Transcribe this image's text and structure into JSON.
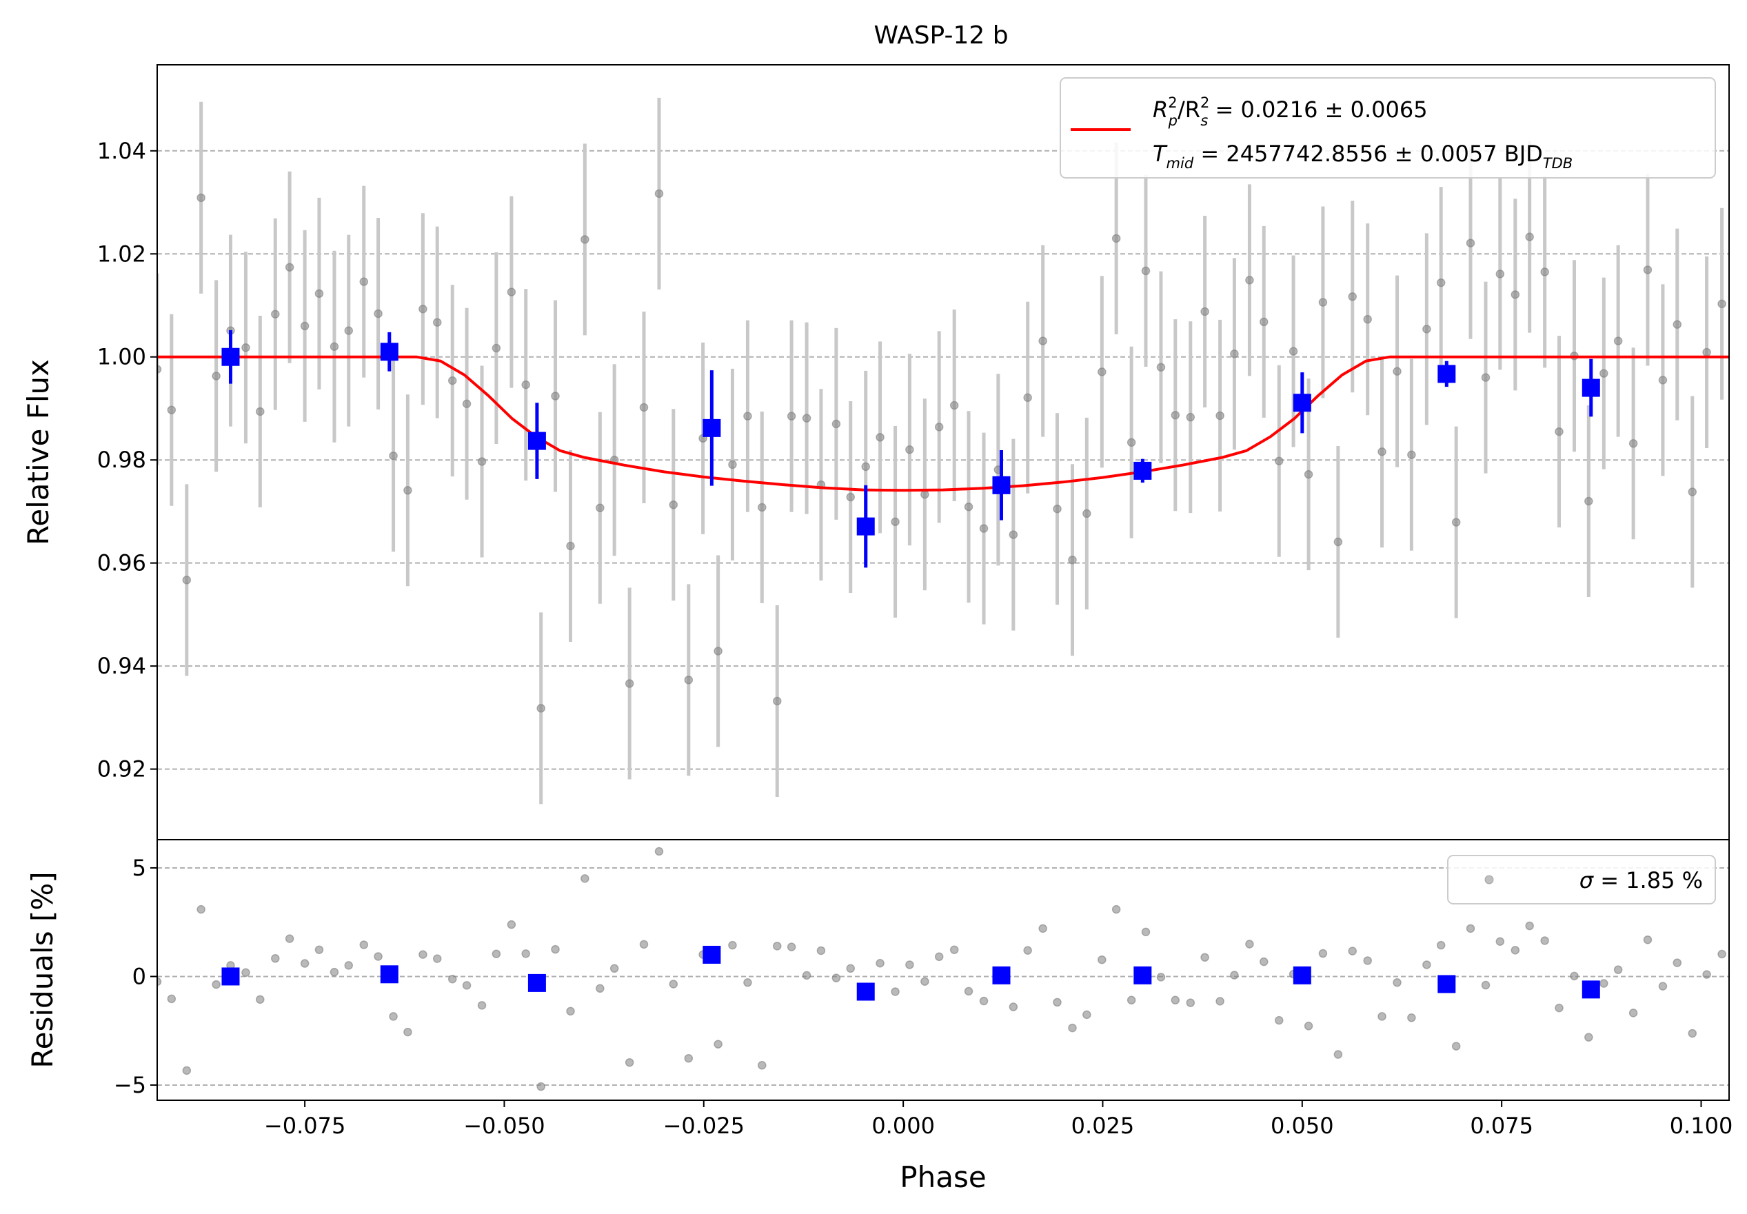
{
  "chart_data": [
    {
      "type": "scatter",
      "panel": "transit",
      "title": "WASP-12 b",
      "xlabel": "",
      "ylabel": "Relative Flux",
      "xlim": [
        -0.0935,
        0.1035
      ],
      "ylim": [
        0.9063,
        1.0567
      ],
      "yticks": [
        0.92,
        0.94,
        0.96,
        0.98,
        1.0,
        1.02,
        1.04
      ],
      "ytick_labels": [
        "0.92",
        "0.94",
        "0.96",
        "0.98",
        "1.00",
        "1.02",
        "1.04"
      ],
      "grid": "horizontal dashed",
      "legend_position": "upper right",
      "legend": {
        "line1_prefix": "R",
        "line1_sup1": "2",
        "line1_sub1": "p",
        "line1_mid": "/R",
        "line1_sup2": "2",
        "line1_sub2": "s",
        "line1_suffix": " = 0.0216 ± 0.0065",
        "line2_prefix": "T",
        "line2_sub": "mid",
        "line2_suffix": " = 2457742.8556 ± 0.0057 BJD",
        "line2_sub2": "TDB"
      },
      "series": [
        {
          "name": "raw",
          "color": "#808080",
          "marker": "circle",
          "error": 0.0186,
          "x": [
            -0.0935,
            -0.0917,
            -0.0898,
            -0.088,
            -0.0861,
            -0.0843,
            -0.0824,
            -0.0806,
            -0.0787,
            -0.0769,
            -0.075,
            -0.0732,
            -0.0713,
            -0.0695,
            -0.0676,
            -0.0658,
            -0.0639,
            -0.0621,
            -0.0602,
            -0.0584,
            -0.0565,
            -0.0547,
            -0.0528,
            -0.051,
            -0.0491,
            -0.0473,
            -0.0454,
            -0.0436,
            -0.0417,
            -0.0399,
            -0.038,
            -0.0362,
            -0.0343,
            -0.0325,
            -0.0306,
            -0.0288,
            -0.0269,
            -0.0251,
            -0.0232,
            -0.0214,
            -0.0195,
            -0.0177,
            -0.0158,
            -0.014,
            -0.0121,
            -0.0103,
            -0.0084,
            -0.0066,
            -0.0047,
            -0.0029,
            -0.001,
            0.0008,
            0.0027,
            0.0045,
            0.0064,
            0.0082,
            0.0101,
            0.0119,
            0.0138,
            0.0156,
            0.0175,
            0.0193,
            0.0212,
            0.023,
            0.0249,
            0.0267,
            0.0286,
            0.0304,
            0.0323,
            0.0341,
            0.036,
            0.0378,
            0.0397,
            0.0415,
            0.0434,
            0.0452,
            0.0471,
            0.0489,
            0.0508,
            0.0526,
            0.0545,
            0.0563,
            0.0582,
            0.06,
            0.0619,
            0.0637,
            0.0656,
            0.0674,
            0.0693,
            0.0711,
            0.073,
            0.0748,
            0.0767,
            0.0785,
            0.0804,
            0.0822,
            0.0841,
            0.0859,
            0.0878,
            0.0896,
            0.0915,
            0.0933,
            0.0952,
            0.097,
            0.0989,
            0.1007,
            0.1026
          ],
          "y": [
            0.9976,
            0.9897,
            0.9567,
            1.0309,
            0.9963,
            1.0051,
            1.0018,
            0.9894,
            1.0083,
            1.0174,
            1.006,
            1.0123,
            1.002,
            1.0051,
            1.0146,
            1.0084,
            0.9808,
            0.9741,
            1.0093,
            1.0067,
            0.9954,
            0.9909,
            0.9797,
            1.0017,
            1.0126,
            0.9946,
            0.9318,
            0.9924,
            0.9633,
            1.0228,
            0.9707,
            0.98,
            0.9366,
            0.9902,
            1.0317,
            0.9713,
            0.9373,
            0.9842,
            0.9429,
            0.9791,
            0.9885,
            0.9708,
            0.9332,
            0.9885,
            0.9881,
            0.9752,
            0.987,
            0.9728,
            0.9787,
            0.9844,
            0.968,
            0.982,
            0.9733,
            0.9864,
            0.9906,
            0.9709,
            0.9667,
            0.9781,
            0.9655,
            0.9921,
            1.0031,
            0.9705,
            0.9606,
            0.9696,
            0.9971,
            1.023,
            0.9834,
            1.0167,
            0.998,
            0.9887,
            0.9883,
            1.0088,
            0.9886,
            1.0006,
            1.0149,
            1.0068,
            0.9798,
            1.0011,
            0.9772,
            1.0106,
            0.9641,
            1.0117,
            1.0073,
            0.9816,
            0.9972,
            0.981,
            1.0054,
            1.0144,
            0.9679,
            1.0221,
            0.996,
            1.0161,
            1.0121,
            1.0233,
            1.0165,
            0.9855,
            1.0002,
            0.972,
            0.9968,
            1.0031,
            0.9832,
            1.0169,
            0.9955,
            1.0063,
            0.9738,
            1.0009,
            1.0103
          ]
        },
        {
          "name": "binned",
          "color": "#0000ff",
          "marker": "square",
          "x": [
            -0.0843,
            -0.0644,
            -0.0459,
            -0.024,
            -0.0047,
            0.0123,
            0.03,
            0.05,
            0.0681,
            0.0862
          ],
          "y": [
            1.0,
            1.001,
            0.9837,
            0.9862,
            0.9671,
            0.9751,
            0.9779,
            0.9911,
            0.9967,
            0.994
          ],
          "error": [
            0.0052,
            0.0038,
            0.0074,
            0.0112,
            0.008,
            0.0068,
            0.0023,
            0.0059,
            0.0025,
            0.0056
          ]
        },
        {
          "name": "model",
          "color": "#ff0000",
          "type": "line",
          "x": [
            -0.0935,
            -0.061,
            -0.058,
            -0.055,
            -0.052,
            -0.049,
            -0.046,
            -0.043,
            -0.04,
            -0.035,
            -0.03,
            -0.025,
            -0.02,
            -0.015,
            -0.01,
            -0.005,
            0.0,
            0.005,
            0.01,
            0.015,
            0.02,
            0.025,
            0.03,
            0.035,
            0.04,
            0.043,
            0.046,
            0.049,
            0.052,
            0.055,
            0.058,
            0.061,
            0.1035
          ],
          "y": [
            1.0,
            1.0,
            0.9992,
            0.9965,
            0.9925,
            0.988,
            0.9845,
            0.9818,
            0.9805,
            0.979,
            0.9777,
            0.9767,
            0.9759,
            0.9752,
            0.9746,
            0.9742,
            0.9741,
            0.9742,
            0.9745,
            0.975,
            0.9757,
            0.9766,
            0.9777,
            0.979,
            0.9805,
            0.9818,
            0.9845,
            0.988,
            0.9925,
            0.9965,
            0.9992,
            1.0,
            1.0
          ]
        }
      ]
    },
    {
      "type": "scatter",
      "panel": "residuals",
      "xlabel": "Phase",
      "ylabel": "Residuals [%]",
      "xlim": [
        -0.0935,
        0.1035
      ],
      "ylim": [
        -5.7,
        6.3
      ],
      "yticks": [
        -5,
        0,
        5
      ],
      "ytick_labels": [
        "−5",
        "0",
        "5"
      ],
      "xticks": [
        -0.075,
        -0.05,
        -0.025,
        0.0,
        0.025,
        0.05,
        0.075,
        0.1
      ],
      "xtick_labels": [
        "−0.075",
        "−0.050",
        "−0.025",
        "0.000",
        "0.025",
        "0.050",
        "0.075",
        "0.100"
      ],
      "grid": "horizontal dashed",
      "legend_position": "upper right",
      "legend": {
        "sigma_symbol": "σ",
        "sigma_text": " = 1.85 %"
      },
      "series": [
        {
          "name": "raw_residuals",
          "color": "#808080",
          "marker": "circle",
          "x": [
            -0.0935,
            -0.0917,
            -0.0898,
            -0.088,
            -0.0861,
            -0.0843,
            -0.0824,
            -0.0806,
            -0.0787,
            -0.0769,
            -0.075,
            -0.0732,
            -0.0713,
            -0.0695,
            -0.0676,
            -0.0658,
            -0.0639,
            -0.0621,
            -0.0602,
            -0.0584,
            -0.0565,
            -0.0547,
            -0.0528,
            -0.051,
            -0.0491,
            -0.0473,
            -0.0454,
            -0.0436,
            -0.0417,
            -0.0399,
            -0.038,
            -0.0362,
            -0.0343,
            -0.0325,
            -0.0306,
            -0.0288,
            -0.0269,
            -0.0251,
            -0.0232,
            -0.0214,
            -0.0195,
            -0.0177,
            -0.0158,
            -0.014,
            -0.0121,
            -0.0103,
            -0.0084,
            -0.0066,
            -0.0047,
            -0.0029,
            -0.001,
            0.0008,
            0.0027,
            0.0045,
            0.0064,
            0.0082,
            0.0101,
            0.0119,
            0.0138,
            0.0156,
            0.0175,
            0.0193,
            0.0212,
            0.023,
            0.0249,
            0.0267,
            0.0286,
            0.0304,
            0.0323,
            0.0341,
            0.036,
            0.0378,
            0.0397,
            0.0415,
            0.0434,
            0.0452,
            0.0471,
            0.0489,
            0.0508,
            0.0526,
            0.0545,
            0.0563,
            0.0582,
            0.06,
            0.0619,
            0.0637,
            0.0656,
            0.0674,
            0.0693,
            0.0711,
            0.073,
            0.0748,
            0.0767,
            0.0785,
            0.0804,
            0.0822,
            0.0841,
            0.0859,
            0.0878,
            0.0896,
            0.0915,
            0.0933,
            0.0952,
            0.097,
            0.0989,
            0.1007,
            0.1026
          ],
          "y": [
            -0.24,
            -1.03,
            -4.33,
            3.09,
            -0.37,
            0.51,
            0.18,
            -1.06,
            0.83,
            1.74,
            0.6,
            1.23,
            0.2,
            0.51,
            1.46,
            0.92,
            -1.84,
            -2.56,
            1.01,
            0.82,
            -0.12,
            -0.41,
            -1.33,
            1.04,
            2.39,
            1.05,
            -5.07,
            1.25,
            -1.6,
            4.51,
            -0.55,
            0.37,
            -3.96,
            1.48,
            5.76,
            -0.35,
            -3.77,
            1.01,
            -3.12,
            1.44,
            -0.28,
            -4.09,
            1.4,
            1.36,
            0.05,
            1.19,
            -0.07,
            0.37,
            -0.8,
            0.61,
            -0.7,
            0.54,
            -0.23,
            0.91,
            1.23,
            -0.68,
            -1.13,
            -0.05,
            -1.4,
            1.2,
            2.21,
            -1.19,
            -2.37,
            -1.76,
            0.77,
            3.09,
            -1.09,
            2.05,
            -0.03,
            -1.09,
            -1.21,
            0.88,
            -1.14,
            0.06,
            1.49,
            0.68,
            -2.02,
            0.11,
            -2.28,
            1.06,
            -3.59,
            1.17,
            0.73,
            -1.84,
            -0.28,
            -1.9,
            0.54,
            1.44,
            -3.21,
            2.21,
            -0.4,
            1.61,
            1.21,
            2.33,
            1.65,
            -1.45,
            0.02,
            -2.8,
            -0.32,
            0.31,
            -1.68,
            1.69,
            -0.45,
            0.63,
            -2.62,
            0.09,
            1.03
          ]
        },
        {
          "name": "binned_residuals",
          "color": "#0000ff",
          "marker": "square",
          "x": [
            -0.0843,
            -0.0644,
            -0.0459,
            -0.024,
            -0.0047,
            0.0123,
            0.03,
            0.05,
            0.0681,
            0.0862
          ],
          "y": [
            0.0,
            0.1,
            -0.3,
            1.0,
            -0.7,
            0.05,
            0.05,
            0.05,
            -0.35,
            -0.6
          ]
        }
      ]
    }
  ]
}
